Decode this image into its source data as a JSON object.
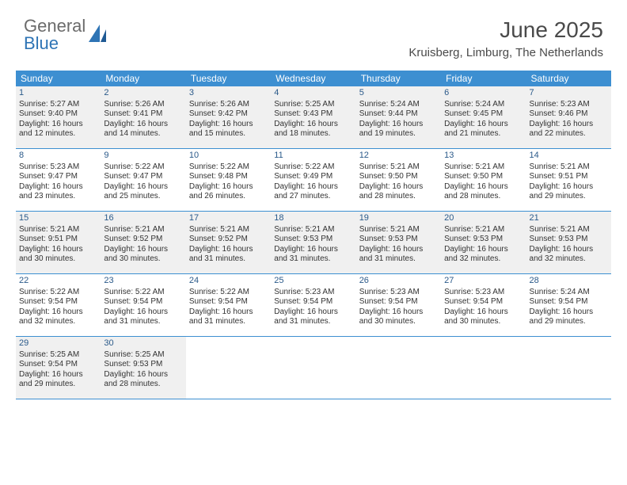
{
  "logo": {
    "word1": "General",
    "word2": "Blue"
  },
  "header": {
    "title": "June 2025",
    "location": "Kruisberg, Limburg, The Netherlands"
  },
  "colors": {
    "header_bar": "#3d8fd1",
    "header_text": "#ffffff",
    "day_number": "#2b5a8a",
    "body_text": "#333333",
    "shaded_bg": "#f0f0f0",
    "logo_gray": "#6b6b6b",
    "logo_blue": "#2e74b5",
    "row_border": "#3d8fd1",
    "background": "#ffffff"
  },
  "typography": {
    "title_fontsize": 28,
    "location_fontsize": 15,
    "weekday_fontsize": 12,
    "daynum_fontsize": 11,
    "body_fontsize": 10,
    "logo_fontsize": 22
  },
  "weekdays": [
    "Sunday",
    "Monday",
    "Tuesday",
    "Wednesday",
    "Thursday",
    "Friday",
    "Saturday"
  ],
  "weeks": [
    {
      "shaded": true,
      "days": [
        {
          "n": "1",
          "sunrise": "Sunrise: 5:27 AM",
          "sunset": "Sunset: 9:40 PM",
          "day1": "Daylight: 16 hours",
          "day2": "and 12 minutes."
        },
        {
          "n": "2",
          "sunrise": "Sunrise: 5:26 AM",
          "sunset": "Sunset: 9:41 PM",
          "day1": "Daylight: 16 hours",
          "day2": "and 14 minutes."
        },
        {
          "n": "3",
          "sunrise": "Sunrise: 5:26 AM",
          "sunset": "Sunset: 9:42 PM",
          "day1": "Daylight: 16 hours",
          "day2": "and 15 minutes."
        },
        {
          "n": "4",
          "sunrise": "Sunrise: 5:25 AM",
          "sunset": "Sunset: 9:43 PM",
          "day1": "Daylight: 16 hours",
          "day2": "and 18 minutes."
        },
        {
          "n": "5",
          "sunrise": "Sunrise: 5:24 AM",
          "sunset": "Sunset: 9:44 PM",
          "day1": "Daylight: 16 hours",
          "day2": "and 19 minutes."
        },
        {
          "n": "6",
          "sunrise": "Sunrise: 5:24 AM",
          "sunset": "Sunset: 9:45 PM",
          "day1": "Daylight: 16 hours",
          "day2": "and 21 minutes."
        },
        {
          "n": "7",
          "sunrise": "Sunrise: 5:23 AM",
          "sunset": "Sunset: 9:46 PM",
          "day1": "Daylight: 16 hours",
          "day2": "and 22 minutes."
        }
      ]
    },
    {
      "shaded": false,
      "days": [
        {
          "n": "8",
          "sunrise": "Sunrise: 5:23 AM",
          "sunset": "Sunset: 9:47 PM",
          "day1": "Daylight: 16 hours",
          "day2": "and 23 minutes."
        },
        {
          "n": "9",
          "sunrise": "Sunrise: 5:22 AM",
          "sunset": "Sunset: 9:47 PM",
          "day1": "Daylight: 16 hours",
          "day2": "and 25 minutes."
        },
        {
          "n": "10",
          "sunrise": "Sunrise: 5:22 AM",
          "sunset": "Sunset: 9:48 PM",
          "day1": "Daylight: 16 hours",
          "day2": "and 26 minutes."
        },
        {
          "n": "11",
          "sunrise": "Sunrise: 5:22 AM",
          "sunset": "Sunset: 9:49 PM",
          "day1": "Daylight: 16 hours",
          "day2": "and 27 minutes."
        },
        {
          "n": "12",
          "sunrise": "Sunrise: 5:21 AM",
          "sunset": "Sunset: 9:50 PM",
          "day1": "Daylight: 16 hours",
          "day2": "and 28 minutes."
        },
        {
          "n": "13",
          "sunrise": "Sunrise: 5:21 AM",
          "sunset": "Sunset: 9:50 PM",
          "day1": "Daylight: 16 hours",
          "day2": "and 28 minutes."
        },
        {
          "n": "14",
          "sunrise": "Sunrise: 5:21 AM",
          "sunset": "Sunset: 9:51 PM",
          "day1": "Daylight: 16 hours",
          "day2": "and 29 minutes."
        }
      ]
    },
    {
      "shaded": true,
      "days": [
        {
          "n": "15",
          "sunrise": "Sunrise: 5:21 AM",
          "sunset": "Sunset: 9:51 PM",
          "day1": "Daylight: 16 hours",
          "day2": "and 30 minutes."
        },
        {
          "n": "16",
          "sunrise": "Sunrise: 5:21 AM",
          "sunset": "Sunset: 9:52 PM",
          "day1": "Daylight: 16 hours",
          "day2": "and 30 minutes."
        },
        {
          "n": "17",
          "sunrise": "Sunrise: 5:21 AM",
          "sunset": "Sunset: 9:52 PM",
          "day1": "Daylight: 16 hours",
          "day2": "and 31 minutes."
        },
        {
          "n": "18",
          "sunrise": "Sunrise: 5:21 AM",
          "sunset": "Sunset: 9:53 PM",
          "day1": "Daylight: 16 hours",
          "day2": "and 31 minutes."
        },
        {
          "n": "19",
          "sunrise": "Sunrise: 5:21 AM",
          "sunset": "Sunset: 9:53 PM",
          "day1": "Daylight: 16 hours",
          "day2": "and 31 minutes."
        },
        {
          "n": "20",
          "sunrise": "Sunrise: 5:21 AM",
          "sunset": "Sunset: 9:53 PM",
          "day1": "Daylight: 16 hours",
          "day2": "and 32 minutes."
        },
        {
          "n": "21",
          "sunrise": "Sunrise: 5:21 AM",
          "sunset": "Sunset: 9:53 PM",
          "day1": "Daylight: 16 hours",
          "day2": "and 32 minutes."
        }
      ]
    },
    {
      "shaded": false,
      "days": [
        {
          "n": "22",
          "sunrise": "Sunrise: 5:22 AM",
          "sunset": "Sunset: 9:54 PM",
          "day1": "Daylight: 16 hours",
          "day2": "and 32 minutes."
        },
        {
          "n": "23",
          "sunrise": "Sunrise: 5:22 AM",
          "sunset": "Sunset: 9:54 PM",
          "day1": "Daylight: 16 hours",
          "day2": "and 31 minutes."
        },
        {
          "n": "24",
          "sunrise": "Sunrise: 5:22 AM",
          "sunset": "Sunset: 9:54 PM",
          "day1": "Daylight: 16 hours",
          "day2": "and 31 minutes."
        },
        {
          "n": "25",
          "sunrise": "Sunrise: 5:23 AM",
          "sunset": "Sunset: 9:54 PM",
          "day1": "Daylight: 16 hours",
          "day2": "and 31 minutes."
        },
        {
          "n": "26",
          "sunrise": "Sunrise: 5:23 AM",
          "sunset": "Sunset: 9:54 PM",
          "day1": "Daylight: 16 hours",
          "day2": "and 30 minutes."
        },
        {
          "n": "27",
          "sunrise": "Sunrise: 5:23 AM",
          "sunset": "Sunset: 9:54 PM",
          "day1": "Daylight: 16 hours",
          "day2": "and 30 minutes."
        },
        {
          "n": "28",
          "sunrise": "Sunrise: 5:24 AM",
          "sunset": "Sunset: 9:54 PM",
          "day1": "Daylight: 16 hours",
          "day2": "and 29 minutes."
        }
      ]
    },
    {
      "shaded": true,
      "days": [
        {
          "n": "29",
          "sunrise": "Sunrise: 5:25 AM",
          "sunset": "Sunset: 9:54 PM",
          "day1": "Daylight: 16 hours",
          "day2": "and 29 minutes."
        },
        {
          "n": "30",
          "sunrise": "Sunrise: 5:25 AM",
          "sunset": "Sunset: 9:53 PM",
          "day1": "Daylight: 16 hours",
          "day2": "and 28 minutes."
        },
        null,
        null,
        null,
        null,
        null
      ]
    }
  ]
}
